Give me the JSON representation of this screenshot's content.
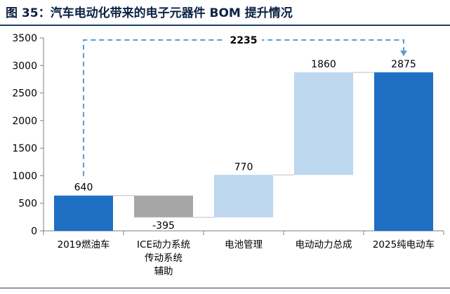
{
  "title": "图 35：汽车电动化带来的电子元器件 BOM 提升情况",
  "chart_data": {
    "type": "waterfall",
    "ylim": [
      0,
      3500
    ],
    "yticks": [
      0,
      500,
      1000,
      1500,
      2000,
      2500,
      3000,
      3500
    ],
    "categories": [
      [
        "2019燃油车"
      ],
      [
        "ICE动力系统",
        "传动系统",
        "辅助"
      ],
      [
        "电池管理"
      ],
      [
        "电动动力总成"
      ],
      [
        "2025纯电动车"
      ]
    ],
    "steps": [
      {
        "kind": "total",
        "value": 640,
        "label": "640"
      },
      {
        "kind": "delta",
        "value": -395,
        "label": "-395"
      },
      {
        "kind": "delta",
        "value": 770,
        "label": "770"
      },
      {
        "kind": "delta",
        "value": 1860,
        "label": "1860"
      },
      {
        "kind": "total",
        "value": 2875,
        "label": "2875"
      }
    ],
    "annotation": {
      "label": "2235",
      "from_index": 0,
      "to_index": 4
    },
    "colors": {
      "total": "#1f6fc4",
      "decrease": "#a6a6a6",
      "increase": "#bcd7ee",
      "annotation": "#5b9bd5",
      "axis": "#7f7f7f",
      "text": "#000000"
    }
  }
}
